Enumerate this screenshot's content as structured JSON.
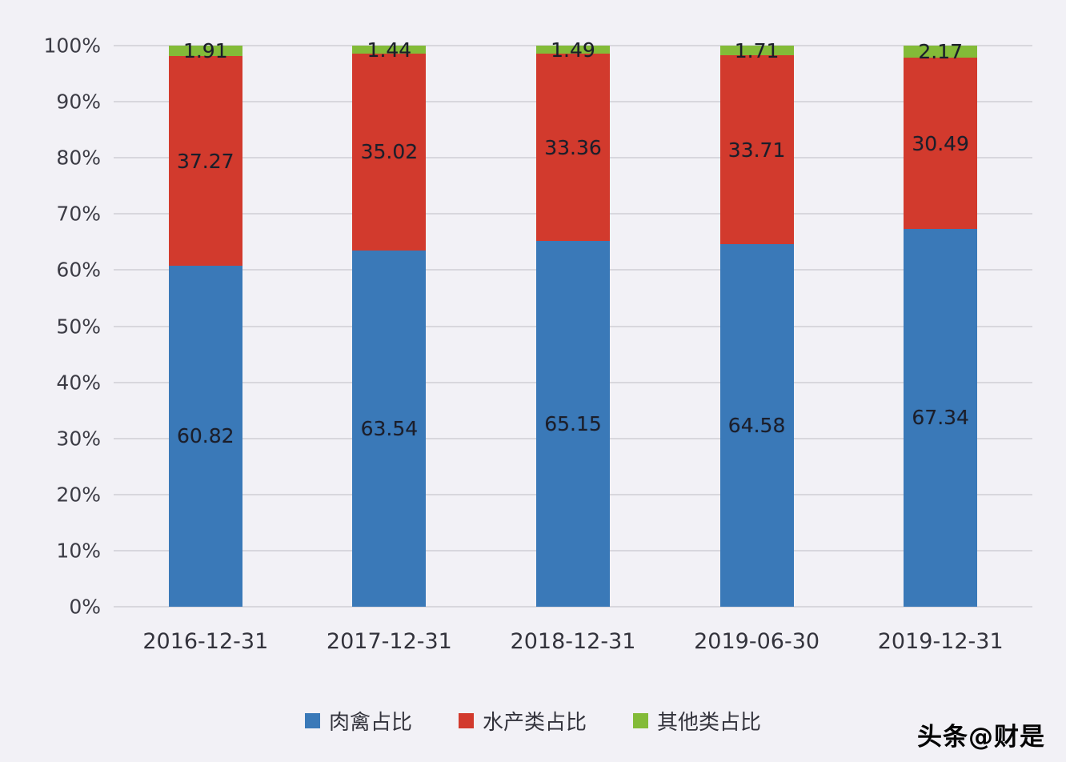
{
  "chart_data": {
    "type": "bar",
    "variant": "stacked-percent",
    "title": "",
    "xlabel": "",
    "ylabel": "",
    "ylim": [
      0,
      100
    ],
    "grid": true,
    "legend_position": "bottom",
    "categories": [
      "2016-12-31",
      "2017-12-31",
      "2018-12-31",
      "2019-06-30",
      "2019-12-31"
    ],
    "yticks": [
      "0%",
      "10%",
      "20%",
      "30%",
      "40%",
      "50%",
      "60%",
      "70%",
      "80%",
      "90%",
      "100%"
    ],
    "series": [
      {
        "name": "肉禽占比",
        "color": "#3a79b8",
        "values": [
          60.82,
          63.54,
          65.15,
          64.58,
          67.34
        ],
        "labels": [
          "60.82",
          "63.54",
          "65.15",
          "64.58",
          "67.34"
        ]
      },
      {
        "name": "水产类占比",
        "color": "#d23a2d",
        "values": [
          37.27,
          35.02,
          33.36,
          33.71,
          30.49
        ],
        "labels": [
          "37.27",
          "35.02",
          "33.36",
          "33.71",
          "30.49"
        ]
      },
      {
        "name": "其他类占比",
        "color": "#83bb38",
        "values": [
          1.91,
          1.44,
          1.49,
          1.71,
          2.17
        ],
        "labels": [
          "1.91",
          "1.44",
          "1.49",
          "1.71",
          "2.17"
        ]
      }
    ],
    "label_color": "#1b1e2a"
  },
  "watermark": "头条@财是"
}
